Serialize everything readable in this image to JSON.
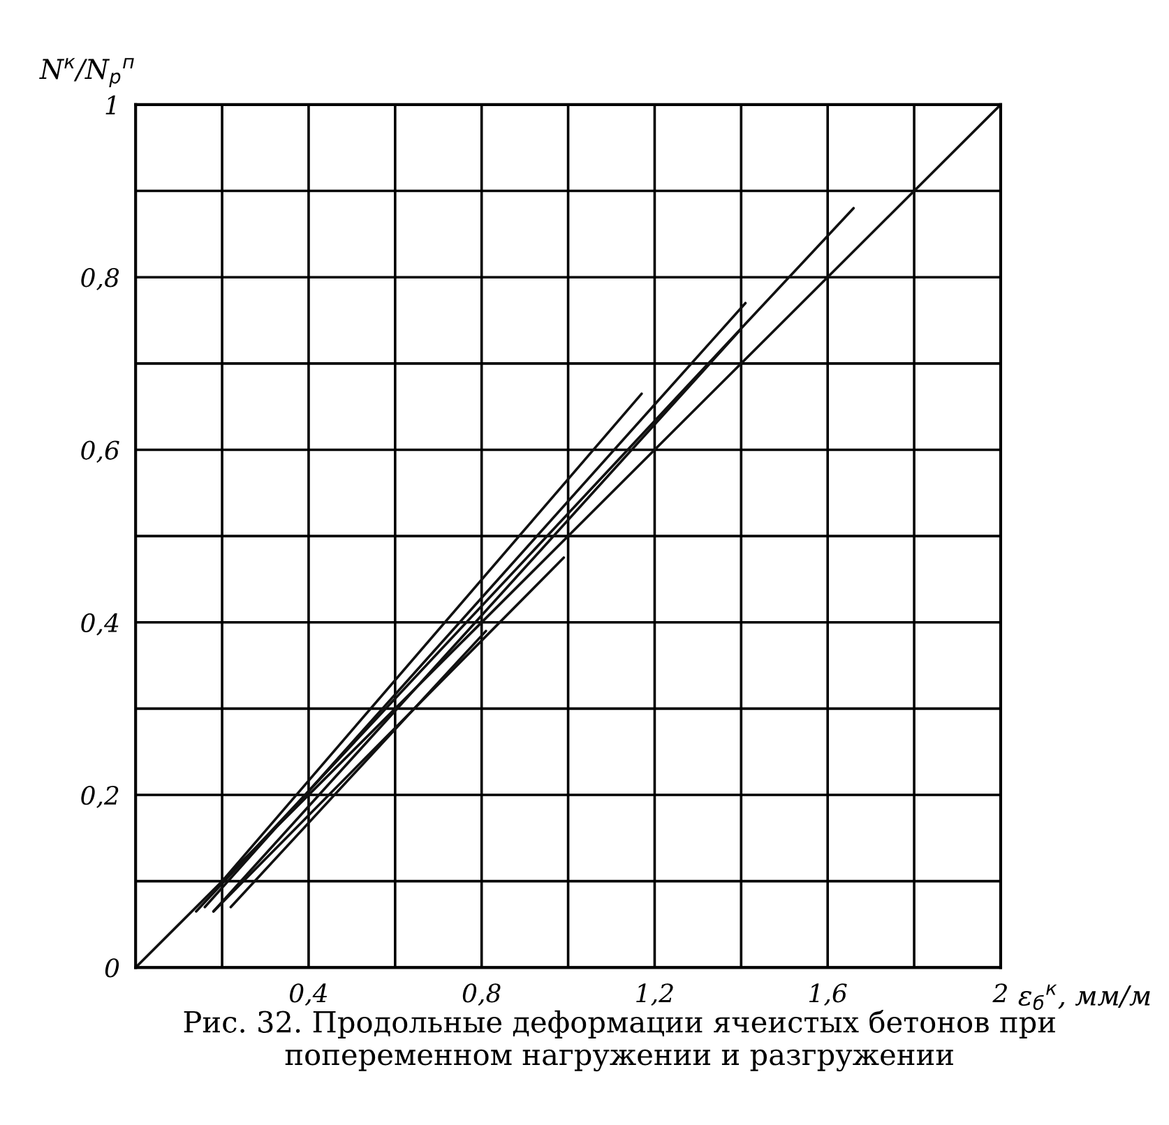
{
  "chart_data": {
    "type": "line",
    "ylabel": "N$^{к}$/N$_{р}$$^{п}$",
    "xlabel": "ε$_{б}$$^{к}$, мм/м",
    "annotations": [
      "Рис. 32. Продольные деформации ячеистых бетонов при попеременном нагружении и разгружении"
    ],
    "series": [
      {
        "color": "#111111",
        "x": [
          0,
          2
        ],
        "values": [
          0,
          1
        ]
      },
      {
        "color": "#111111",
        "x": [
          0.14,
          1.66
        ],
        "values": [
          0.065,
          0.88
        ]
      },
      {
        "color": "#111111",
        "x": [
          0.16,
          1.41
        ],
        "values": [
          0.07,
          0.77
        ]
      },
      {
        "color": "#111111",
        "x": [
          0.2,
          1.17
        ],
        "values": [
          0.1,
          0.665
        ]
      },
      {
        "color": "#111111",
        "x": [
          0.18,
          1.4
        ],
        "values": [
          0.065,
          0.74
        ]
      },
      {
        "color": "#111111",
        "x": [
          0.18,
          0.99
        ],
        "values": [
          0.065,
          0.475
        ]
      },
      {
        "color": "#111111",
        "x": [
          0.22,
          0.81
        ],
        "values": [
          0.07,
          0.39
        ]
      }
    ],
    "xlim": [
      0,
      2
    ],
    "ylim": [
      0,
      1
    ],
    "xticks": [
      {
        "value": 0,
        "label": null
      },
      {
        "value": 0.2,
        "label": null
      },
      {
        "value": 0.4,
        "label": "0,4"
      },
      {
        "value": 0.6,
        "label": null
      },
      {
        "value": 0.8,
        "label": "0,8"
      },
      {
        "value": 1.0,
        "label": null
      },
      {
        "value": 1.2,
        "label": "1,2"
      },
      {
        "value": 1.4,
        "label": null
      },
      {
        "value": 1.6,
        "label": "1,6"
      },
      {
        "value": 1.8,
        "label": null
      },
      2
    ],
    "yticks": [
      0,
      {
        "value": 0.1,
        "label": null
      },
      {
        "value": 0.2,
        "label": "0,2"
      },
      {
        "value": 0.3,
        "label": null
      },
      {
        "value": 0.4,
        "label": "0,4"
      },
      {
        "value": 0.5,
        "label": null
      },
      {
        "value": 0.6,
        "label": "0,6"
      },
      {
        "value": 0.7,
        "label": null
      },
      {
        "value": 0.8,
        "label": "0,8"
      },
      {
        "value": 0.9,
        "label": null
      },
      1
    ],
    "grid": true,
    "line_style": "solid",
    "marker": "none"
  }
}
